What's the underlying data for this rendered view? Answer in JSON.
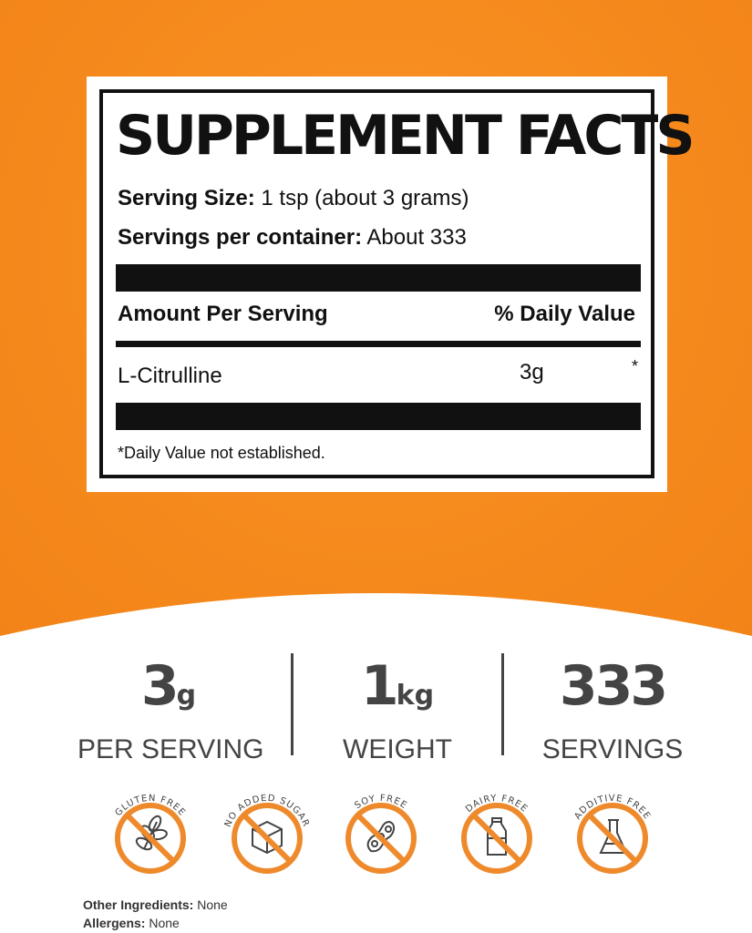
{
  "facts": {
    "title": "SUPPLEMENT FACTS",
    "serving_size_label": "Serving Size:",
    "serving_size_value": "1 tsp (about 3 grams)",
    "servings_label": "Servings per container:",
    "servings_value": "About 333",
    "amount_header": "Amount Per Serving",
    "dv_header": "% Daily Value",
    "ingredient_name": "L-Citrulline",
    "ingredient_amount": "3g",
    "ingredient_dv": "*",
    "footnote": "*Daily Value not established."
  },
  "stats": [
    {
      "value": "3",
      "unit": "g",
      "caption": "PER SERVING"
    },
    {
      "value": "1",
      "unit": "kg",
      "caption": "WEIGHT"
    },
    {
      "value": "333",
      "unit": "",
      "caption": "SERVINGS"
    }
  ],
  "badges": [
    {
      "label": "GLUTEN FREE",
      "icon": "wheat-icon"
    },
    {
      "label": "NO ADDED SUGAR",
      "icon": "sugar-cube-icon"
    },
    {
      "label": "SOY FREE",
      "icon": "soybean-icon"
    },
    {
      "label": "DAIRY FREE",
      "icon": "milk-bottle-icon"
    },
    {
      "label": "ADDITIVE FREE",
      "icon": "flask-icon"
    }
  ],
  "footer": {
    "other_label": "Other Ingredients:",
    "other_value": "None",
    "allergens_label": "Allergens:",
    "allergens_value": "None"
  },
  "colors": {
    "orange": "#f5891c",
    "badge_orange": "#ee8a2c",
    "text_gray": "#444444"
  }
}
